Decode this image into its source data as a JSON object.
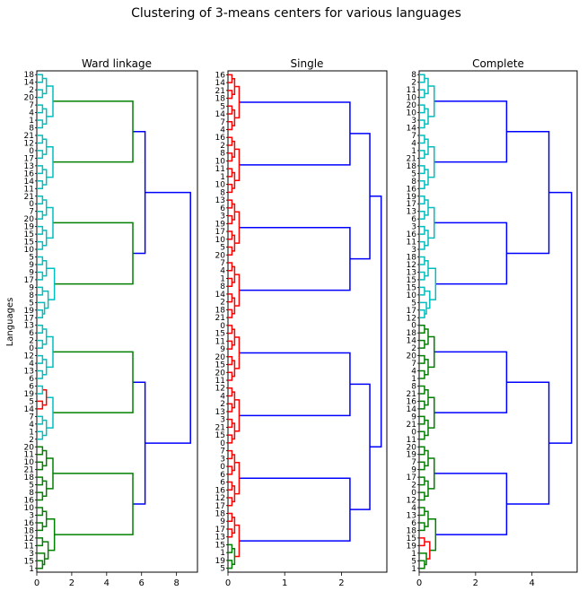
{
  "suptitle": "Clustering of 3-means centers for various languages",
  "ylabel": "Languages",
  "colors": {
    "green": "#008000",
    "cyan": "#00bfbf",
    "red": "#ff0000",
    "blue": "#0000ff"
  },
  "chart_data": [
    {
      "type": "dendrogram",
      "title": "Ward linkage",
      "xlim": [
        0,
        9.2
      ],
      "xticks": [
        "0",
        "2",
        "4",
        "6",
        "8"
      ],
      "leaf_labels": [
        "1",
        "15",
        "3",
        "11",
        "12",
        "18",
        "16",
        "3",
        "10",
        "16",
        "8",
        "5",
        "18",
        "21",
        "10",
        "11",
        "20",
        "2",
        "1",
        "4",
        "7",
        "14",
        "5",
        "19",
        "6",
        "6",
        "13",
        "4",
        "12",
        "0",
        "2",
        "6",
        "13",
        "17",
        "19",
        "5",
        "8",
        "9",
        "17",
        "9",
        "9",
        "5",
        "10",
        "15",
        "15",
        "19",
        "20",
        "7",
        "0",
        "21",
        "11",
        "14",
        "16",
        "13",
        "17",
        "0",
        "12",
        "21",
        "8",
        "1",
        "4",
        "7",
        "20",
        "2",
        "14",
        "18"
      ],
      "merges": [
        {
          "height": 8.8,
          "color": "blue"
        },
        {
          "height": 6.2,
          "color": "blue"
        },
        {
          "height": 5.5,
          "color": "green"
        },
        {
          "height": 4.5,
          "color": "cyan"
        },
        {
          "height": 3.2,
          "color": "cyan"
        },
        {
          "height": 2.9,
          "color": "cyan"
        },
        {
          "height": 2.6,
          "color": "green"
        },
        {
          "height": 1.4,
          "color": "red"
        }
      ]
    },
    {
      "type": "dendrogram",
      "title": "Single",
      "xlim": [
        0,
        2.8
      ],
      "xticks": [
        "0",
        "1",
        "2"
      ],
      "leaf_labels": [
        "5",
        "19",
        "1",
        "15",
        "13",
        "17",
        "9",
        "18",
        "17",
        "12",
        "16",
        "6",
        "6",
        "0",
        "3",
        "7",
        "0",
        "15",
        "21",
        "3",
        "13",
        "2",
        "4",
        "12",
        "11",
        "20",
        "15",
        "20",
        "9",
        "11",
        "15",
        "0",
        "21",
        "18",
        "2",
        "14",
        "8",
        "1",
        "4",
        "7",
        "20",
        "5",
        "10",
        "17",
        "19",
        "3",
        "6",
        "13",
        "8",
        "10",
        "1",
        "11",
        "10",
        "8",
        "2",
        "16",
        "4",
        "7",
        "14",
        "5",
        "18",
        "21",
        "14",
        "16"
      ],
      "merges": [
        {
          "height": 2.7,
          "color": "blue"
        },
        {
          "height": 2.5,
          "color": "blue"
        },
        {
          "height": 2.15,
          "color": "blue"
        },
        {
          "height": 2.08,
          "color": "blue"
        },
        {
          "height": 1.4,
          "color": "green"
        },
        {
          "height": 1.2,
          "color": "red"
        }
      ]
    },
    {
      "type": "dendrogram",
      "title": "Complete",
      "xlim": [
        0,
        5.6
      ],
      "xticks": [
        "0",
        "2",
        "4"
      ],
      "leaf_labels": [
        "1",
        "5",
        "1",
        "19",
        "15",
        "18",
        "6",
        "13",
        "4",
        "12",
        "0",
        "2",
        "17",
        "9",
        "7",
        "19",
        "20",
        "11",
        "0",
        "21",
        "9",
        "14",
        "16",
        "21",
        "8",
        "1",
        "4",
        "7",
        "20",
        "2",
        "14",
        "18",
        "0",
        "12",
        "17",
        "5",
        "10",
        "15",
        "15",
        "13",
        "12",
        "18",
        "3",
        "11",
        "16",
        "3",
        "6",
        "13",
        "17",
        "19",
        "16",
        "8",
        "5",
        "18",
        "21",
        "1",
        "4",
        "7",
        "14",
        "3",
        "10",
        "20",
        "10",
        "11",
        "2",
        "8"
      ],
      "merges": [
        {
          "height": 5.4,
          "color": "blue"
        },
        {
          "height": 4.6,
          "color": "blue"
        },
        {
          "height": 3.1,
          "color": "blue"
        },
        {
          "height": 2.6,
          "color": "green"
        },
        {
          "height": 2.5,
          "color": "cyan"
        },
        {
          "height": 2.2,
          "color": "cyan"
        },
        {
          "height": 1.45,
          "color": "red"
        }
      ]
    }
  ]
}
